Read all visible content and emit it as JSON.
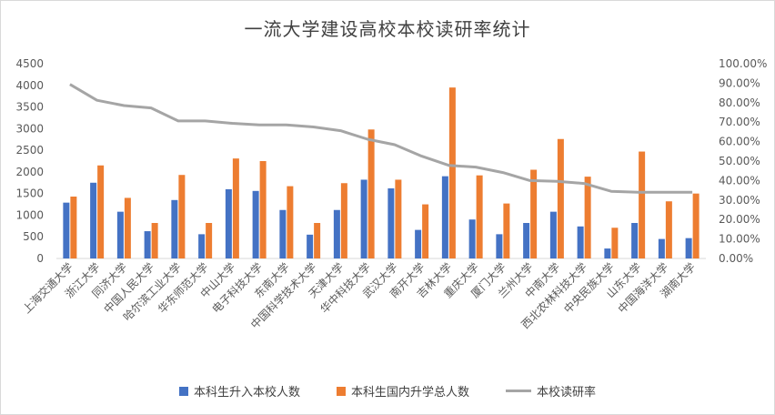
{
  "chart_data": {
    "type": "bar",
    "title": "一流大学建设高校本校读研率统计",
    "categories": [
      "上海交通大学",
      "浙江大学",
      "同济大学",
      "中国人民大学",
      "哈尔滨工业大学",
      "华东师范大学",
      "中山大学",
      "电子科技大学",
      "东南大学",
      "中国科学技术大学",
      "天津大学",
      "华中科技大学",
      "武汉大学",
      "南开大学",
      "吉林大学",
      "重庆大学",
      "厦门大学",
      "兰州大学",
      "中南大学",
      "西北农林科技大学",
      "中央民族大学",
      "山东大学",
      "中国海洋大学",
      "湖南大学"
    ],
    "series": [
      {
        "name": "本科生升入本校人数",
        "type": "bar",
        "axis": "left",
        "color": "#4472c4",
        "values": [
          1290,
          1750,
          1080,
          630,
          1350,
          560,
          1600,
          1560,
          1120,
          550,
          1120,
          1820,
          1620,
          660,
          1900,
          900,
          560,
          820,
          1080,
          740,
          230,
          820,
          450,
          470
        ]
      },
      {
        "name": "本科生国内升学总人数",
        "type": "bar",
        "axis": "left",
        "color": "#ed7d31",
        "values": [
          1430,
          2150,
          1400,
          820,
          1930,
          820,
          2310,
          2250,
          1670,
          820,
          1740,
          2980,
          1820,
          1250,
          3950,
          1920,
          1270,
          2050,
          2760,
          1890,
          710,
          2470,
          1320,
          1500
        ]
      },
      {
        "name": "本校读研率",
        "type": "line",
        "axis": "right",
        "color": "#a5a5a5",
        "values": [
          0.894,
          0.812,
          0.785,
          0.773,
          0.706,
          0.706,
          0.694,
          0.686,
          0.686,
          0.675,
          0.656,
          0.612,
          0.584,
          0.525,
          0.478,
          0.469,
          0.441,
          0.4,
          0.396,
          0.385,
          0.345,
          0.34,
          0.34,
          0.34
        ]
      }
    ],
    "left_axis": {
      "min": 0,
      "max": 4500,
      "step": 500,
      "ticks": [
        "0",
        "500",
        "1000",
        "1500",
        "2000",
        "2500",
        "3000",
        "3500",
        "4000",
        "4500"
      ]
    },
    "right_axis": {
      "min": 0,
      "max": 1,
      "step": 0.1,
      "ticks": [
        "0.00%",
        "10.00%",
        "20.00%",
        "30.00%",
        "40.00%",
        "50.00%",
        "60.00%",
        "70.00%",
        "80.00%",
        "90.00%",
        "100.00%"
      ]
    },
    "grid": false,
    "legend_position": "bottom"
  }
}
